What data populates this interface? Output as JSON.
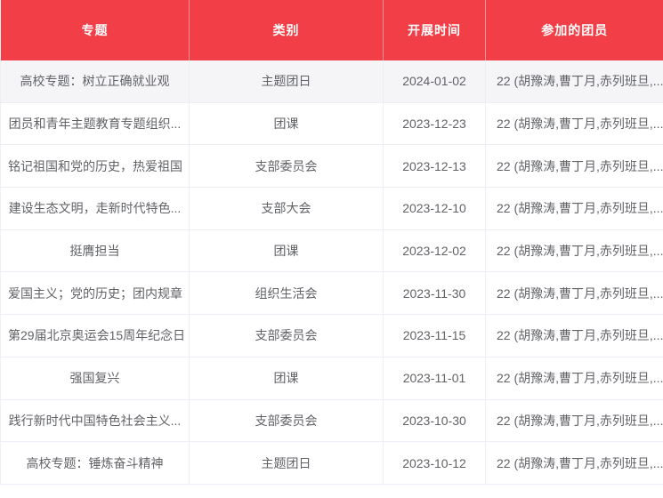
{
  "table": {
    "columns": [
      {
        "label": "专题"
      },
      {
        "label": "类别"
      },
      {
        "label": "开展时间"
      },
      {
        "label": "参加的团员"
      }
    ],
    "rows": [
      {
        "topic": "高校专题：树立正确就业观",
        "category": "主题团日",
        "date": "2024-01-02",
        "members": "22 (胡豫涛,曹丁月,赤列班旦,..."
      },
      {
        "topic": "团员和青年主题教育专题组织...",
        "category": "团课",
        "date": "2023-12-23",
        "members": "22 (胡豫涛,曹丁月,赤列班旦,..."
      },
      {
        "topic": "铭记祖国和党的历史，热爱祖国",
        "category": "支部委员会",
        "date": "2023-12-13",
        "members": "22 (胡豫涛,曹丁月,赤列班旦,..."
      },
      {
        "topic": "建设生态文明，走新时代特色...",
        "category": "支部大会",
        "date": "2023-12-10",
        "members": "22 (胡豫涛,曹丁月,赤列班旦,..."
      },
      {
        "topic": "挺膺担当",
        "category": "团课",
        "date": "2023-12-02",
        "members": "22 (胡豫涛,曹丁月,赤列班旦,..."
      },
      {
        "topic": "爱国主义；党的历史；团内规章",
        "category": "组织生活会",
        "date": "2023-11-30",
        "members": "22 (胡豫涛,曹丁月,赤列班旦,..."
      },
      {
        "topic": "第29届北京奥运会15周年纪念日",
        "category": "支部委员会",
        "date": "2023-11-15",
        "members": "22 (胡豫涛,曹丁月,赤列班旦,..."
      },
      {
        "topic": "强国复兴",
        "category": "团课",
        "date": "2023-11-01",
        "members": "22 (胡豫涛,曹丁月,赤列班旦,..."
      },
      {
        "topic": "践行新时代中国特色社会主义...",
        "category": "支部委员会",
        "date": "2023-10-30",
        "members": "22 (胡豫涛,曹丁月,赤列班旦,..."
      },
      {
        "topic": "高校专题：锤炼奋斗精神",
        "category": "主题团日",
        "date": "2023-10-12",
        "members": "22 (胡豫涛,曹丁月,赤列班旦,..."
      }
    ],
    "colors": {
      "header_bg": "#f23e46",
      "header_text": "#ffffff",
      "body_text": "#606266",
      "row_border": "#ebeef5",
      "highlighted_row_bg": "#f5f5f8"
    }
  }
}
